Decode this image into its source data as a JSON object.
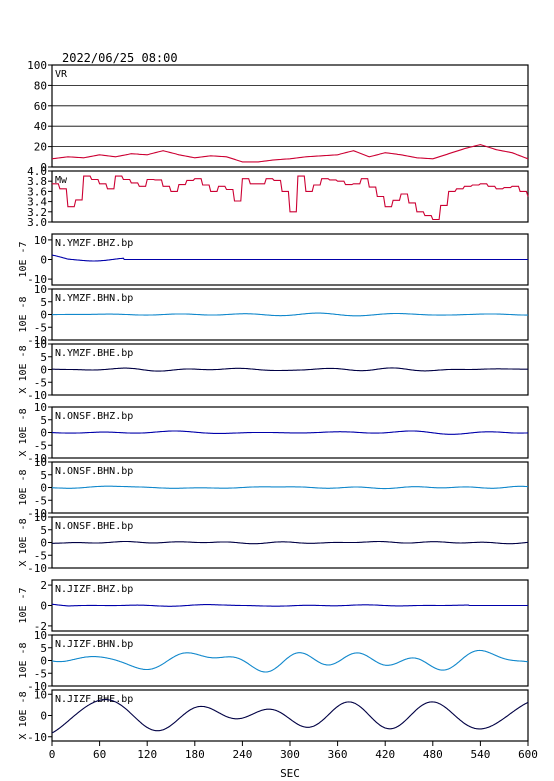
{
  "header": {
    "timestamp": "2022/06/25 08:00"
  },
  "xaxis": {
    "label": "SEC",
    "ticks": [
      0,
      60,
      120,
      180,
      240,
      300,
      360,
      420,
      480,
      540,
      600
    ],
    "range": [
      0,
      600
    ]
  },
  "colors": {
    "vr": "#cc0033",
    "mw": "#cc0033",
    "z": "#0000aa",
    "n": "#1188cc",
    "e": "#000044"
  },
  "chart_data": [
    {
      "type": "line",
      "name": "VR",
      "label": "VR",
      "ylim": [
        0,
        100
      ],
      "yticks": [
        "100",
        "80",
        "60",
        "40",
        "20",
        "0"
      ],
      "grid": true,
      "description": "variance reduction",
      "series": [
        {
          "values_t": [
            0,
            20,
            40,
            60,
            80,
            100,
            120,
            140,
            160,
            180,
            200,
            220,
            240,
            260,
            280,
            300,
            320,
            340,
            360,
            380,
            400,
            420,
            440,
            460,
            480,
            500,
            520,
            540,
            560,
            580,
            600
          ],
          "values": [
            8,
            10,
            9,
            12,
            10,
            13,
            12,
            16,
            12,
            9,
            11,
            10,
            5,
            5,
            7,
            8,
            10,
            11,
            12,
            16,
            10,
            14,
            12,
            9,
            8,
            13,
            18,
            22,
            17,
            14,
            8
          ]
        }
      ]
    },
    {
      "type": "line",
      "name": "Mw",
      "label": "Mw",
      "ylim": [
        3.0,
        4.0
      ],
      "yticks": [
        "4.0",
        "3.8",
        "3.6",
        "3.4",
        "3.2",
        "3.0"
      ],
      "series": [
        {
          "values_t": [
            0,
            10,
            20,
            35,
            40,
            55,
            75,
            80,
            95,
            110,
            125,
            135,
            150,
            165,
            180,
            200,
            215,
            235,
            240,
            255,
            270,
            285,
            300,
            310,
            320,
            340,
            360,
            375,
            390,
            405,
            420,
            440,
            460,
            480,
            500,
            520,
            540,
            560,
            580,
            600
          ],
          "values": [
            3.75,
            3.65,
            3.3,
            3.5,
            3.9,
            3.8,
            3.6,
            3.9,
            3.8,
            3.7,
            3.9,
            3.75,
            3.6,
            3.8,
            3.85,
            3.6,
            3.75,
            3.3,
            3.85,
            3.7,
            3.85,
            3.8,
            3.2,
            3.9,
            3.6,
            3.85,
            3.8,
            3.7,
            3.85,
            3.6,
            3.3,
            3.55,
            3.2,
            3.05,
            3.6,
            3.7,
            3.75,
            3.65,
            3.7,
            3.5
          ]
        }
      ]
    },
    {
      "type": "line",
      "name": "N.YMZF.BHZ.bp",
      "label": "N.YMZF.BHZ.bp",
      "exponent": "10E -7",
      "ylim": [
        -13,
        13
      ],
      "yticks": [
        "10",
        "0",
        "-10"
      ],
      "channel": "z",
      "amp": 0.9,
      "seed": 1,
      "trace_end": 90
    },
    {
      "type": "line",
      "name": "N.YMZF.BHN.bp",
      "label": "N.YMZF.BHN.bp",
      "exponent": "10E -8",
      "ylim": [
        -10,
        10
      ],
      "yticks": [
        "10",
        "5",
        "0",
        "-5",
        "-10"
      ],
      "channel": "n",
      "amp": 0.5,
      "seed": 2
    },
    {
      "type": "line",
      "name": "N.YMZF.BHE.bp",
      "label": "N.YMZF.BHE.bp",
      "exponent": "X 10E -8",
      "ylim": [
        -10,
        10
      ],
      "yticks": [
        "10",
        "5",
        "0",
        "-5",
        "-10"
      ],
      "channel": "e",
      "amp": 0.6,
      "seed": 3
    },
    {
      "type": "line",
      "name": "N.ONSF.BHZ.bp",
      "label": "N.ONSF.BHZ.bp",
      "exponent": "X 10E -8",
      "ylim": [
        -10,
        10
      ],
      "yticks": [
        "10",
        "5",
        "0",
        "-5",
        "-10"
      ],
      "channel": "z",
      "amp": 0.4,
      "seed": 4
    },
    {
      "type": "line",
      "name": "N.ONSF.BHN.bp",
      "label": "N.ONSF.BHN.bp",
      "exponent": "10E -8",
      "ylim": [
        -10,
        10
      ],
      "yticks": [
        "10",
        "5",
        "0",
        "-5",
        "-10"
      ],
      "channel": "n",
      "amp": 0.8,
      "seed": 5
    },
    {
      "type": "line",
      "name": "N.ONSF.BHE.bp",
      "label": "N.ONSF.BHE.bp",
      "exponent": "X 10E -8",
      "ylim": [
        -10,
        10
      ],
      "yticks": [
        "10",
        "5",
        "0",
        "-5",
        "-10"
      ],
      "channel": "e",
      "amp": 0.4,
      "seed": 6
    },
    {
      "type": "line",
      "name": "N.JIZF.BHZ.bp",
      "label": "N.JIZF.BHZ.bp",
      "exponent": "10E -7",
      "ylim": [
        -2.5,
        2.5
      ],
      "yticks": [
        "2",
        "0",
        "-2"
      ],
      "channel": "z",
      "amp": 0.08,
      "seed": 7,
      "trace_end": 525
    },
    {
      "type": "line",
      "name": "N.JIZF.BHN.bp",
      "label": "N.JIZF.BHN.bp",
      "exponent": "10E -8",
      "ylim": [
        -10,
        10
      ],
      "yticks": [
        "10",
        "5",
        "0",
        "-5",
        "-10"
      ],
      "channel": "n",
      "amp": 4.5,
      "seed": 8
    },
    {
      "type": "line",
      "name": "N.JIZF.BHE.bp",
      "label": "N.JIZF.BHE.bp",
      "exponent": "X 10E -8",
      "ylim": [
        -12,
        12
      ],
      "yticks": [
        "10",
        "0",
        "-10"
      ],
      "channel": "e",
      "amp": 8,
      "seed": 9
    }
  ]
}
